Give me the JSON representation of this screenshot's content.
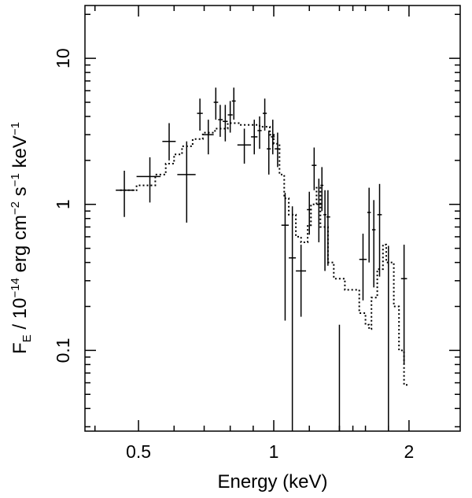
{
  "chart_data": {
    "type": "scatter",
    "title": "",
    "xlabel": "Energy (keV)",
    "ylabel_parts": {
      "F": "F",
      "sub": "E",
      "text1": " / 10",
      "exp1": "−14",
      "text2": " erg cm",
      "exp2": "−2",
      "text3": " s",
      "exp3": "−1",
      "text4": " keV",
      "exp4": "−1"
    },
    "xscale": "log",
    "yscale": "log",
    "xlim": [
      0.38,
      2.6
    ],
    "ylim": [
      0.028,
      23
    ],
    "xticks": [
      {
        "value": 0.5,
        "label": "0.5"
      },
      {
        "value": 1,
        "label": "1"
      },
      {
        "value": 2,
        "label": "2"
      }
    ],
    "yticks": [
      {
        "value": 0.1,
        "label": "0.1"
      },
      {
        "value": 1,
        "label": "1"
      },
      {
        "value": 10,
        "label": "10"
      }
    ],
    "grid": false,
    "legend": "none",
    "data_points": [
      {
        "x": 0.465,
        "xlo": 0.445,
        "xhi": 0.49,
        "y": 1.25,
        "ylo": 0.82,
        "yhi": 1.7
      },
      {
        "x": 0.53,
        "xlo": 0.495,
        "xhi": 0.56,
        "y": 1.55,
        "ylo": 1.03,
        "yhi": 2.1
      },
      {
        "x": 0.585,
        "xlo": 0.565,
        "xhi": 0.605,
        "y": 2.7,
        "ylo": 2.0,
        "yhi": 3.6
      },
      {
        "x": 0.64,
        "xlo": 0.61,
        "xhi": 0.67,
        "y": 1.6,
        "ylo": 0.75,
        "yhi": 2.7
      },
      {
        "x": 0.685,
        "xlo": 0.675,
        "xhi": 0.695,
        "y": 4.2,
        "ylo": 3.2,
        "yhi": 5.3
      },
      {
        "x": 0.715,
        "xlo": 0.695,
        "xhi": 0.735,
        "y": 3.0,
        "ylo": 2.2,
        "yhi": 3.8
      },
      {
        "x": 0.743,
        "xlo": 0.735,
        "xhi": 0.752,
        "y": 5.0,
        "ylo": 3.8,
        "yhi": 6.3
      },
      {
        "x": 0.76,
        "xlo": 0.752,
        "xhi": 0.77,
        "y": 3.8,
        "ylo": 2.9,
        "yhi": 4.8
      },
      {
        "x": 0.78,
        "xlo": 0.77,
        "xhi": 0.79,
        "y": 3.7,
        "ylo": 2.7,
        "yhi": 4.8
      },
      {
        "x": 0.8,
        "xlo": 0.79,
        "xhi": 0.81,
        "y": 4.1,
        "ylo": 3.1,
        "yhi": 5.1
      },
      {
        "x": 0.815,
        "xlo": 0.807,
        "xhi": 0.823,
        "y": 5.1,
        "ylo": 3.8,
        "yhi": 6.3
      },
      {
        "x": 0.86,
        "xlo": 0.83,
        "xhi": 0.89,
        "y": 2.55,
        "ylo": 1.9,
        "yhi": 3.3
      },
      {
        "x": 0.905,
        "xlo": 0.89,
        "xhi": 0.92,
        "y": 2.9,
        "ylo": 2.2,
        "yhi": 3.8
      },
      {
        "x": 0.93,
        "xlo": 0.92,
        "xhi": 0.94,
        "y": 3.2,
        "ylo": 2.4,
        "yhi": 4.0
      },
      {
        "x": 0.955,
        "xlo": 0.945,
        "xhi": 0.965,
        "y": 4.2,
        "ylo": 3.2,
        "yhi": 5.3
      },
      {
        "x": 0.975,
        "xlo": 0.965,
        "xhi": 0.985,
        "y": 2.4,
        "ylo": 1.6,
        "yhi": 3.2
      },
      {
        "x": 0.995,
        "xlo": 0.985,
        "xhi": 1.005,
        "y": 2.9,
        "ylo": 2.2,
        "yhi": 3.8
      },
      {
        "x": 1.02,
        "xlo": 1.005,
        "xhi": 1.035,
        "y": 2.4,
        "ylo": 1.8,
        "yhi": 3.1
      },
      {
        "x": 1.06,
        "xlo": 1.04,
        "xhi": 1.08,
        "y": 0.72,
        "ylo": 0.16,
        "yhi": 1.2
      },
      {
        "x": 1.1,
        "xlo": 1.08,
        "xhi": 1.12,
        "y": 0.43,
        "ylo": 0.028,
        "yhi": 0.97
      },
      {
        "x": 1.15,
        "xlo": 1.12,
        "xhi": 1.18,
        "y": 0.35,
        "ylo": 0.17,
        "yhi": 0.53
      },
      {
        "x": 1.2,
        "xlo": 1.185,
        "xhi": 1.215,
        "y": 0.92,
        "ylo": 0.62,
        "yhi": 1.22
      },
      {
        "x": 1.23,
        "xlo": 1.215,
        "xhi": 1.245,
        "y": 1.85,
        "ylo": 1.25,
        "yhi": 2.45
      },
      {
        "x": 1.26,
        "xlo": 1.245,
        "xhi": 1.275,
        "y": 1.0,
        "ylo": 0.55,
        "yhi": 1.5
      },
      {
        "x": 1.28,
        "xlo": 1.27,
        "xhi": 1.29,
        "y": 1.35,
        "ylo": 0.9,
        "yhi": 1.8
      },
      {
        "x": 1.3,
        "xlo": 1.29,
        "xhi": 1.31,
        "y": 0.85,
        "ylo": 0.35,
        "yhi": 1.25
      },
      {
        "x": 1.32,
        "xlo": 1.31,
        "xhi": 1.335,
        "y": 0.82,
        "ylo": 0.38,
        "yhi": 1.25
      },
      {
        "x": 1.4,
        "xlo": 1.38,
        "xhi": 1.42,
        "y": 0.0,
        "ylo": 0.028,
        "yhi": 0.15
      },
      {
        "x": 1.58,
        "xlo": 1.55,
        "xhi": 1.61,
        "y": 0.42,
        "ylo": 0.22,
        "yhi": 0.63
      },
      {
        "x": 1.63,
        "xlo": 1.615,
        "xhi": 1.645,
        "y": 0.88,
        "ylo": 0.4,
        "yhi": 1.3
      },
      {
        "x": 1.67,
        "xlo": 1.655,
        "xhi": 1.685,
        "y": 0.67,
        "ylo": 0.27,
        "yhi": 1.07
      },
      {
        "x": 1.72,
        "xlo": 1.7,
        "xhi": 1.74,
        "y": 0.85,
        "ylo": 0.32,
        "yhi": 1.38
      },
      {
        "x": 1.8,
        "xlo": 1.78,
        "xhi": 1.82,
        "y": 0.0,
        "ylo": 0.028,
        "yhi": 0.52
      },
      {
        "x": 1.95,
        "xlo": 1.92,
        "xhi": 1.98,
        "y": 0.31,
        "ylo": 0.08,
        "yhi": 0.53
      }
    ],
    "model": [
      [
        0.455,
        1.25
      ],
      [
        0.495,
        1.25
      ],
      [
        0.495,
        1.35
      ],
      [
        0.545,
        1.35
      ],
      [
        0.545,
        1.6
      ],
      [
        0.575,
        1.6
      ],
      [
        0.575,
        1.9
      ],
      [
        0.6,
        1.9
      ],
      [
        0.6,
        2.2
      ],
      [
        0.625,
        2.2
      ],
      [
        0.625,
        2.5
      ],
      [
        0.66,
        2.5
      ],
      [
        0.66,
        2.8
      ],
      [
        0.695,
        2.8
      ],
      [
        0.695,
        3.1
      ],
      [
        0.74,
        3.1
      ],
      [
        0.74,
        3.3
      ],
      [
        0.79,
        3.3
      ],
      [
        0.79,
        3.6
      ],
      [
        0.84,
        3.6
      ],
      [
        0.84,
        3.5
      ],
      [
        0.93,
        3.5
      ],
      [
        0.93,
        3.4
      ],
      [
        0.98,
        3.4
      ],
      [
        0.98,
        3.0
      ],
      [
        1.0,
        3.0
      ],
      [
        1.0,
        2.6
      ],
      [
        1.03,
        2.6
      ],
      [
        1.03,
        1.6
      ],
      [
        1.055,
        1.6
      ],
      [
        1.055,
        1.1
      ],
      [
        1.08,
        1.1
      ],
      [
        1.08,
        0.85
      ],
      [
        1.12,
        0.85
      ],
      [
        1.12,
        0.6
      ],
      [
        1.15,
        0.6
      ],
      [
        1.15,
        0.55
      ],
      [
        1.19,
        0.55
      ],
      [
        1.19,
        0.72
      ],
      [
        1.21,
        0.72
      ],
      [
        1.21,
        1.0
      ],
      [
        1.245,
        1.0
      ],
      [
        1.245,
        1.3
      ],
      [
        1.27,
        1.3
      ],
      [
        1.27,
        0.7
      ],
      [
        1.32,
        0.7
      ],
      [
        1.32,
        0.4
      ],
      [
        1.36,
        0.4
      ],
      [
        1.36,
        0.31
      ],
      [
        1.44,
        0.31
      ],
      [
        1.44,
        0.26
      ],
      [
        1.55,
        0.26
      ],
      [
        1.55,
        0.18
      ],
      [
        1.6,
        0.18
      ],
      [
        1.6,
        0.15
      ],
      [
        1.63,
        0.15
      ],
      [
        1.63,
        0.14
      ],
      [
        1.65,
        0.14
      ],
      [
        1.65,
        0.23
      ],
      [
        1.7,
        0.23
      ],
      [
        1.7,
        0.36
      ],
      [
        1.75,
        0.36
      ],
      [
        1.75,
        0.53
      ],
      [
        1.78,
        0.53
      ],
      [
        1.78,
        0.4
      ],
      [
        1.85,
        0.4
      ],
      [
        1.85,
        0.2
      ],
      [
        1.9,
        0.2
      ],
      [
        1.9,
        0.1
      ],
      [
        1.95,
        0.1
      ],
      [
        1.95,
        0.058
      ],
      [
        1.99,
        0.058
      ]
    ]
  }
}
